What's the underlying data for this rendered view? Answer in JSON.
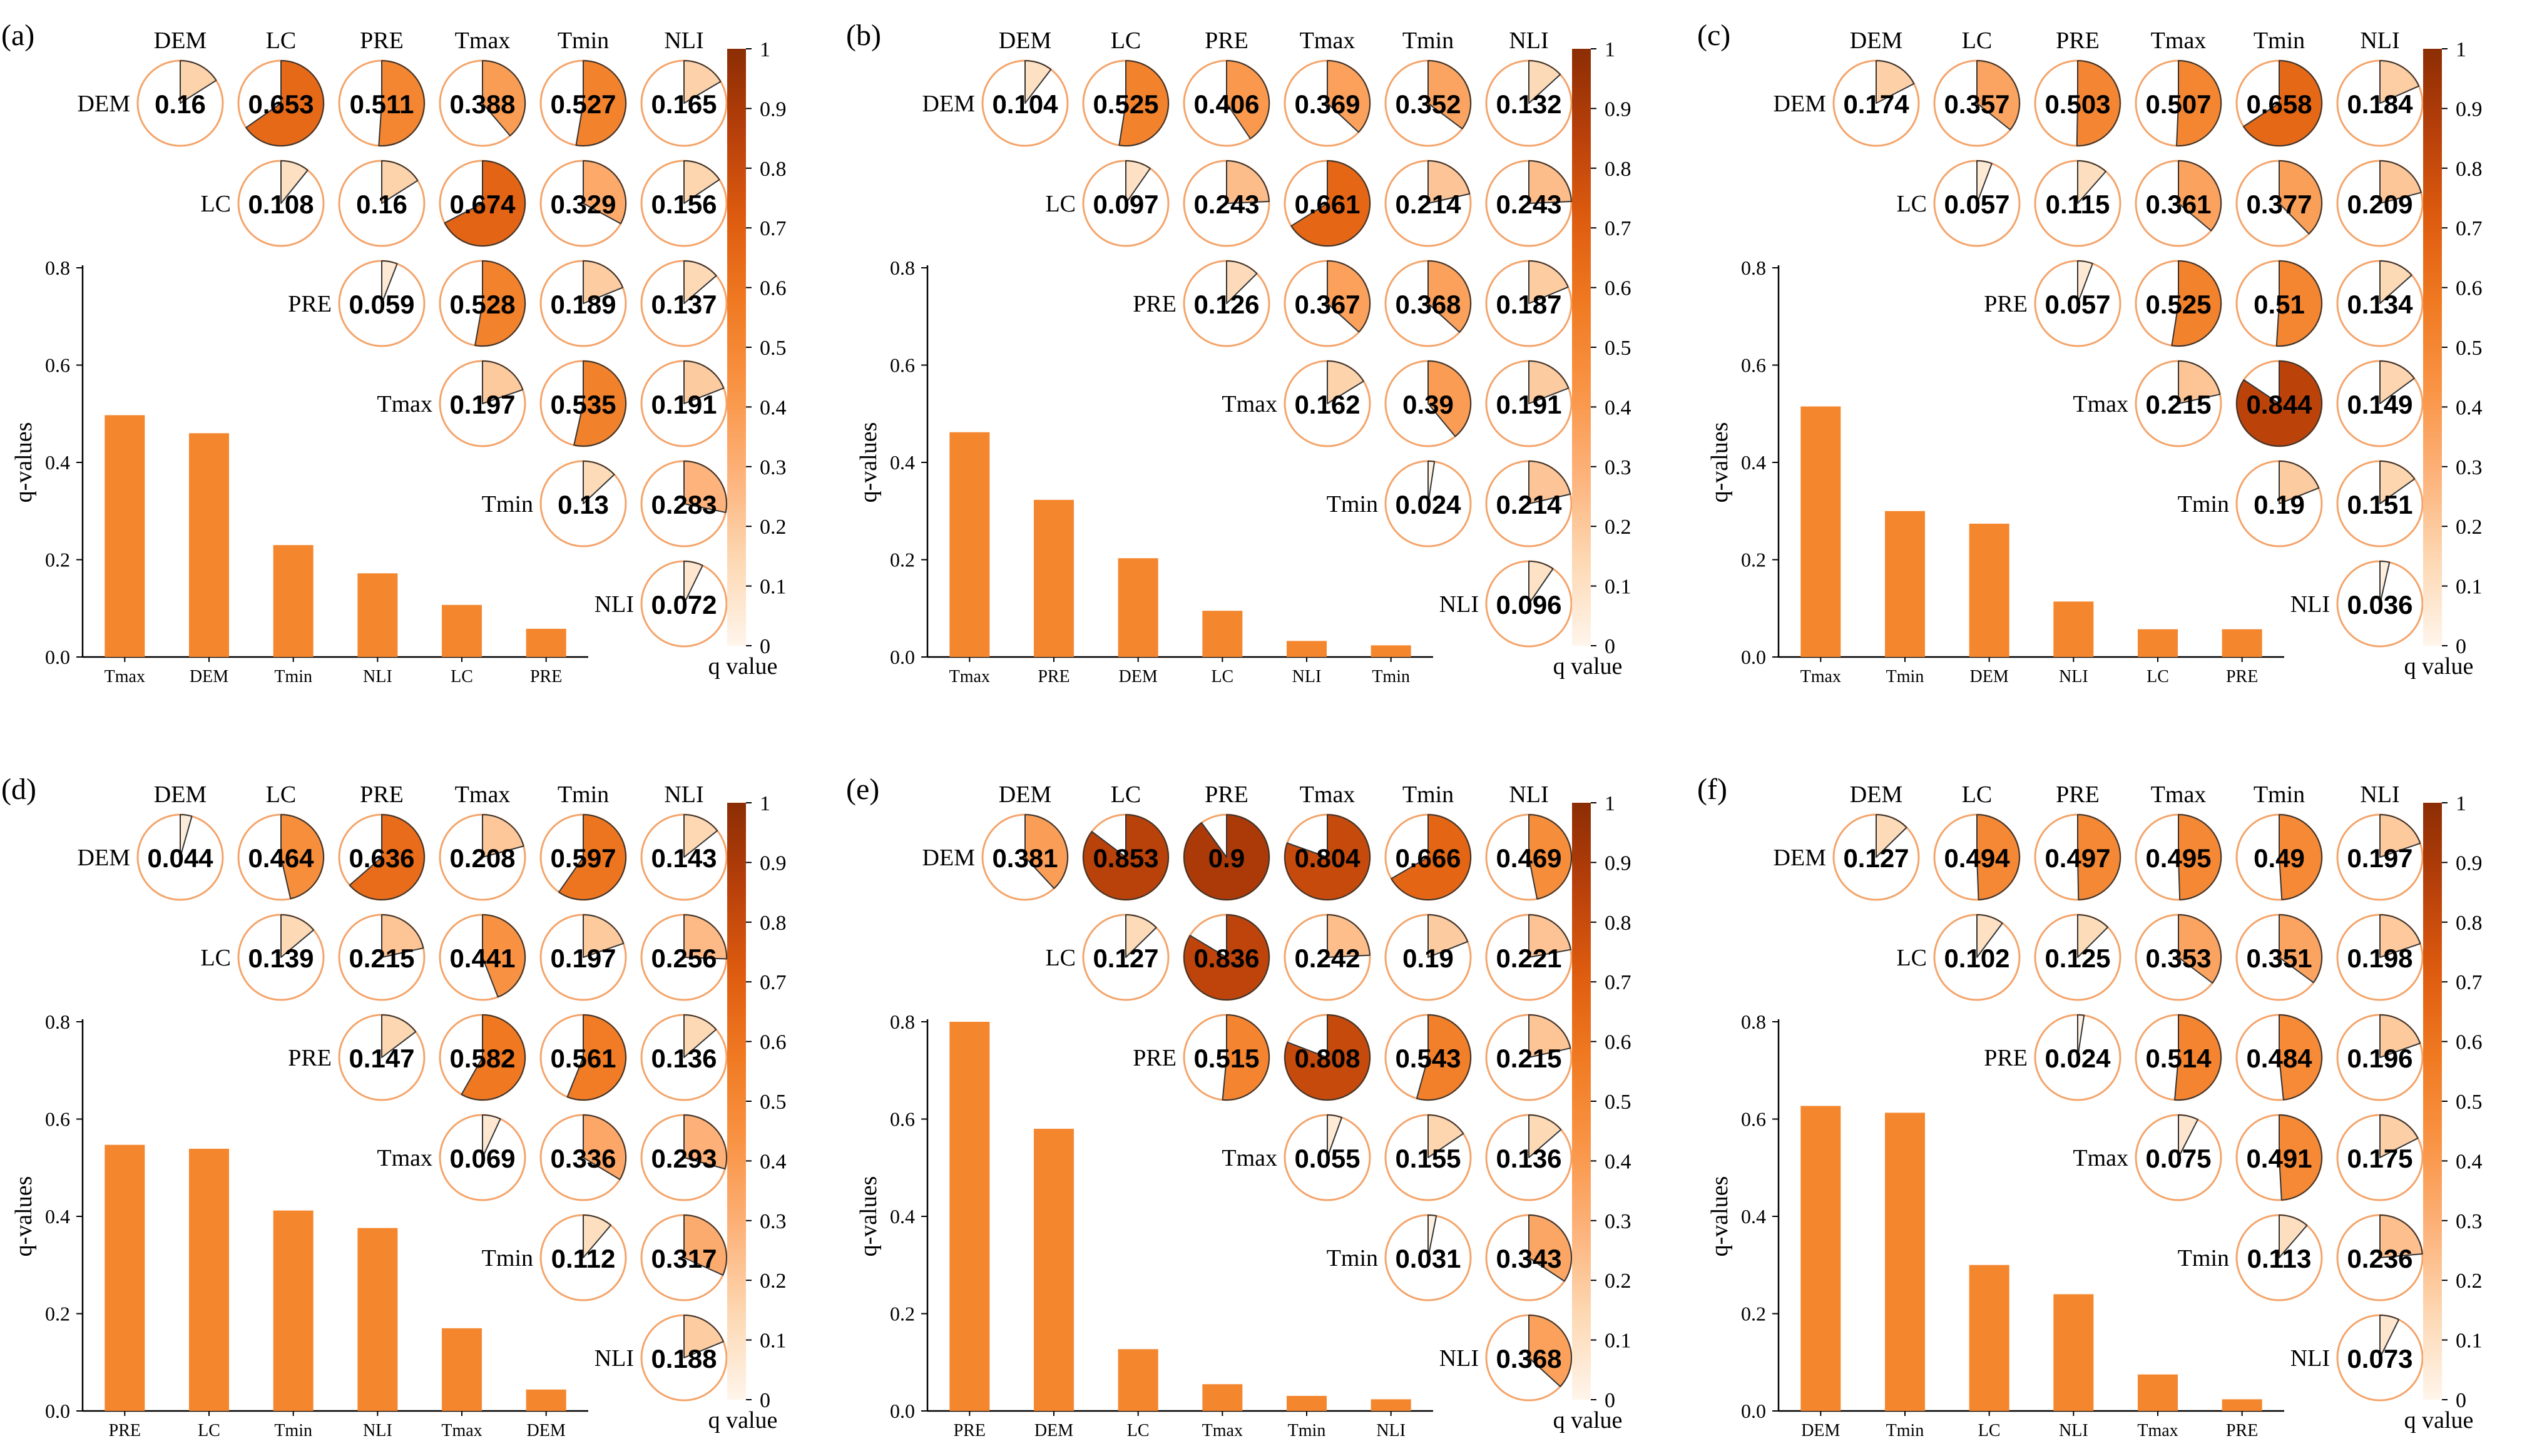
{
  "colors": {
    "bar": "#F4862E",
    "pie_outline": "#F4A46A",
    "scale": [
      "#FFF5EB",
      "#FDD8B3",
      "#FDB27A",
      "#F99445",
      "#F07A22",
      "#DE5C0F",
      "#B8400A",
      "#8C2D04"
    ]
  },
  "factors": [
    "DEM",
    "LC",
    "PRE",
    "Tmax",
    "Tmin",
    "NLI"
  ],
  "colorbar": {
    "title": "q value",
    "ticks": [
      "0",
      "0.1",
      "0.2",
      "0.3",
      "0.4",
      "0.5",
      "0.6",
      "0.7",
      "0.8",
      "0.9",
      "1"
    ]
  },
  "chart_data": [
    {
      "type": "pie-matrix-with-bar",
      "panel_label": "(a)",
      "matrix": [
        [
          0.16,
          0.653,
          0.511,
          0.388,
          0.527,
          0.165
        ],
        [
          null,
          0.108,
          0.16,
          0.674,
          0.329,
          0.156
        ],
        [
          null,
          null,
          0.059,
          0.528,
          0.189,
          0.137
        ],
        [
          null,
          null,
          null,
          0.197,
          0.535,
          0.191
        ],
        [
          null,
          null,
          null,
          null,
          0.13,
          0.283
        ],
        [
          null,
          null,
          null,
          null,
          null,
          0.072
        ]
      ],
      "bar": {
        "categories": [
          "Tmax",
          "DEM",
          "Tmin",
          "NLI",
          "LC",
          "PRE"
        ],
        "values": [
          0.497,
          0.46,
          0.23,
          0.172,
          0.107,
          0.058
        ],
        "ylabel": "q-values",
        "ylim": [
          0,
          0.8
        ],
        "yticks": [
          "0.0",
          "0.2",
          "0.4",
          "0.6",
          "0.8"
        ]
      }
    },
    {
      "type": "pie-matrix-with-bar",
      "panel_label": "(b)",
      "matrix": [
        [
          0.104,
          0.525,
          0.406,
          0.369,
          0.352,
          0.132
        ],
        [
          null,
          0.097,
          0.243,
          0.661,
          0.214,
          0.243
        ],
        [
          null,
          null,
          0.126,
          0.367,
          0.368,
          0.187
        ],
        [
          null,
          null,
          null,
          0.162,
          0.39,
          0.191
        ],
        [
          null,
          null,
          null,
          null,
          0.024,
          0.214
        ],
        [
          null,
          null,
          null,
          null,
          null,
          0.096
        ]
      ],
      "bar": {
        "categories": [
          "Tmax",
          "PRE",
          "DEM",
          "LC",
          "NLI",
          "Tmin"
        ],
        "values": [
          0.462,
          0.323,
          0.203,
          0.095,
          0.033,
          0.024
        ],
        "ylabel": "q-values",
        "ylim": [
          0,
          0.8
        ],
        "yticks": [
          "0.0",
          "0.2",
          "0.4",
          "0.6",
          "0.8"
        ]
      }
    },
    {
      "type": "pie-matrix-with-bar",
      "panel_label": "(c)",
      "matrix": [
        [
          0.174,
          0.357,
          0.503,
          0.507,
          0.658,
          0.184
        ],
        [
          null,
          0.057,
          0.115,
          0.361,
          0.377,
          0.209
        ],
        [
          null,
          null,
          0.057,
          0.525,
          0.51,
          0.134
        ],
        [
          null,
          null,
          null,
          0.215,
          0.844,
          0.149
        ],
        [
          null,
          null,
          null,
          null,
          0.19,
          0.151
        ],
        [
          null,
          null,
          null,
          null,
          null,
          0.036
        ]
      ],
      "bar": {
        "categories": [
          "Tmax",
          "Tmin",
          "DEM",
          "NLI",
          "LC",
          "PRE"
        ],
        "values": [
          0.515,
          0.3,
          0.274,
          0.114,
          0.057,
          0.057
        ],
        "ylabel": "q-values",
        "ylim": [
          0,
          0.8
        ],
        "yticks": [
          "0.0",
          "0.2",
          "0.4",
          "0.6",
          "0.8"
        ]
      }
    },
    {
      "type": "pie-matrix-with-bar",
      "panel_label": "(d)",
      "matrix": [
        [
          0.044,
          0.464,
          0.636,
          0.208,
          0.597,
          0.143
        ],
        [
          null,
          0.139,
          0.215,
          0.441,
          0.197,
          0.256
        ],
        [
          null,
          null,
          0.147,
          0.582,
          0.561,
          0.136
        ],
        [
          null,
          null,
          null,
          0.069,
          0.336,
          0.293
        ],
        [
          null,
          null,
          null,
          null,
          0.112,
          0.317
        ],
        [
          null,
          null,
          null,
          null,
          null,
          0.188
        ]
      ],
      "bar": {
        "categories": [
          "PRE",
          "LC",
          "Tmin",
          "NLI",
          "Tmax",
          "DEM"
        ],
        "values": [
          0.547,
          0.539,
          0.412,
          0.376,
          0.17,
          0.044
        ],
        "ylabel": "q-values",
        "ylim": [
          0,
          0.8
        ],
        "yticks": [
          "0.0",
          "0.2",
          "0.4",
          "0.6",
          "0.8"
        ]
      }
    },
    {
      "type": "pie-matrix-with-bar",
      "panel_label": "(e)",
      "matrix": [
        [
          0.381,
          0.853,
          0.9,
          0.804,
          0.666,
          0.469
        ],
        [
          null,
          0.127,
          0.836,
          0.242,
          0.19,
          0.221
        ],
        [
          null,
          null,
          0.515,
          0.808,
          0.543,
          0.215
        ],
        [
          null,
          null,
          null,
          0.055,
          0.155,
          0.136
        ],
        [
          null,
          null,
          null,
          null,
          0.031,
          0.343
        ],
        [
          null,
          null,
          null,
          null,
          null,
          0.368
        ]
      ],
      "bar": {
        "categories": [
          "PRE",
          "DEM",
          "LC",
          "Tmax",
          "Tmin",
          "NLI"
        ],
        "values": [
          0.8,
          0.58,
          0.127,
          0.055,
          0.031,
          0.024
        ],
        "ylabel": "q-values",
        "ylim": [
          0,
          0.8
        ],
        "yticks": [
          "0.0",
          "0.2",
          "0.4",
          "0.6",
          "0.8"
        ]
      }
    },
    {
      "type": "pie-matrix-with-bar",
      "panel_label": "(f)",
      "matrix": [
        [
          0.127,
          0.494,
          0.497,
          0.495,
          0.49,
          0.197
        ],
        [
          null,
          0.102,
          0.125,
          0.353,
          0.351,
          0.198
        ],
        [
          null,
          null,
          0.024,
          0.514,
          0.484,
          0.196
        ],
        [
          null,
          null,
          null,
          0.075,
          0.491,
          0.175
        ],
        [
          null,
          null,
          null,
          null,
          0.113,
          0.236
        ],
        [
          null,
          null,
          null,
          null,
          null,
          0.073
        ]
      ],
      "bar": {
        "categories": [
          "DEM",
          "Tmin",
          "LC",
          "NLI",
          "Tmax",
          "PRE"
        ],
        "values": [
          0.627,
          0.613,
          0.3,
          0.24,
          0.075,
          0.024
        ],
        "ylabel": "q-values",
        "ylim": [
          0,
          0.8
        ],
        "yticks": [
          "0.0",
          "0.2",
          "0.4",
          "0.6",
          "0.8"
        ]
      }
    }
  ]
}
